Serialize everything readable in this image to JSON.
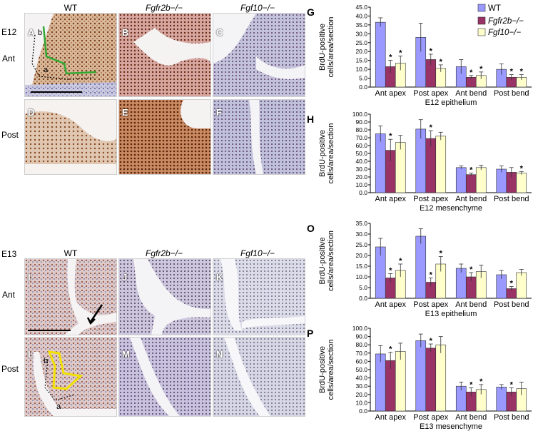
{
  "figure": {
    "top": {
      "stage": "E12",
      "columns": [
        "WT",
        "Fgfr2b−/−",
        "Fgf10−/−"
      ],
      "rows": [
        "Ant",
        "Post"
      ],
      "panel_letters": [
        "A",
        "B",
        "C",
        "D",
        "E",
        "F"
      ],
      "annotations": {
        "a": "a",
        "b": "b"
      }
    },
    "bottom": {
      "stage": "E13",
      "columns": [
        "WT",
        "Fgfr2b−/−",
        "Fgf10−/−"
      ],
      "rows": [
        "Ant",
        "Post"
      ],
      "panel_letters": [
        "I",
        "J",
        "K",
        "L",
        "M",
        "N"
      ],
      "annotations": {
        "a": "a",
        "b": "b"
      }
    },
    "colors": {
      "WT": "#9999ff",
      "Fgfr2b": "#993366",
      "Fgf10": "#ffffcc",
      "epithelium_stain": "#8b4a1f",
      "mesenchyme_stain": "#6a6aa8"
    }
  },
  "legend": [
    "WT",
    "Fgfr2b−/−",
    "Fgf10−/−"
  ],
  "chart_data": [
    {
      "panel": "G",
      "type": "bar",
      "title": "",
      "xlabel": "E12 epithelium",
      "ylabel": "BrdU-positive cells/area/section",
      "ylim": [
        0,
        45
      ],
      "yticks": [
        "0.0",
        "5.0",
        "10.0",
        "15.0",
        "20.0",
        "25.0",
        "30.0",
        "35.0",
        "40.0",
        "45.0"
      ],
      "grid": false,
      "categories": [
        "Ant apex",
        "Post apex",
        "Ant bend",
        "Post bend"
      ],
      "series": [
        {
          "name": "WT",
          "values": [
            36.5,
            28.0,
            11.5,
            10.0
          ],
          "errors": [
            2.5,
            8.0,
            4.0,
            3.0
          ]
        },
        {
          "name": "Fgfr2b−/−",
          "values": [
            11.5,
            15.5,
            5.5,
            5.5
          ],
          "errors": [
            3.5,
            3.0,
            1.0,
            1.5
          ]
        },
        {
          "name": "Fgf10−/−",
          "values": [
            13.5,
            10.5,
            6.5,
            5.5
          ],
          "errors": [
            4.0,
            2.0,
            2.0,
            1.5
          ]
        }
      ],
      "significance": [
        [
          0,
          1
        ],
        [
          0,
          2
        ],
        [
          1,
          1
        ],
        [
          1,
          2
        ],
        [
          2,
          1
        ],
        [
          2,
          2
        ],
        [
          3,
          1
        ],
        [
          3,
          2
        ]
      ]
    },
    {
      "panel": "H",
      "type": "bar",
      "title": "",
      "xlabel": "E12 mesenchyme",
      "ylabel": "BrdU-positive cells/area/section",
      "ylim": [
        0,
        100
      ],
      "yticks": [
        "0.0",
        "10.0",
        "20.0",
        "30.0",
        "40.0",
        "50.0",
        "60.0",
        "70.0",
        "80.0",
        "90.0",
        "100.0"
      ],
      "grid": false,
      "categories": [
        "Ant apex",
        "Post apex",
        "Ant bend",
        "Post bend"
      ],
      "series": [
        {
          "name": "WT",
          "values": [
            75,
            81,
            32,
            30
          ],
          "errors": [
            10,
            12,
            2,
            4
          ]
        },
        {
          "name": "Fgfr2b−/−",
          "values": [
            54,
            69,
            23,
            26
          ],
          "errors": [
            14,
            10,
            2,
            6
          ]
        },
        {
          "name": "Fgf10−/−",
          "values": [
            64,
            72,
            32,
            25
          ],
          "errors": [
            9,
            5,
            3,
            2
          ]
        }
      ],
      "significance": [
        [
          0,
          1
        ],
        [
          1,
          1
        ],
        [
          2,
          1
        ],
        [
          3,
          2
        ]
      ]
    },
    {
      "panel": "O",
      "type": "bar",
      "title": "",
      "xlabel": "E13 epithelium",
      "ylabel": "BrdU-positive cells/area/section",
      "ylim": [
        0,
        35
      ],
      "yticks": [
        "0.0",
        "5.0",
        "10.0",
        "15.0",
        "20.0",
        "25.0",
        "30.0",
        "35.0"
      ],
      "grid": false,
      "categories": [
        "Ant apex",
        "Post apex",
        "Ant bend",
        "Post bend"
      ],
      "series": [
        {
          "name": "WT",
          "values": [
            24.0,
            29.0,
            14.0,
            11.0
          ],
          "errors": [
            4.0,
            3.5,
            2.0,
            2.0
          ]
        },
        {
          "name": "Fgfr2b−/−",
          "values": [
            9.5,
            7.5,
            10.0,
            4.5
          ],
          "errors": [
            2.0,
            2.0,
            2.0,
            1.0
          ]
        },
        {
          "name": "Fgf10−/−",
          "values": [
            13.0,
            16.0,
            12.5,
            12.0
          ],
          "errors": [
            3.0,
            3.5,
            3.0,
            1.5
          ]
        }
      ],
      "significance": [
        [
          0,
          1
        ],
        [
          0,
          2
        ],
        [
          1,
          1
        ],
        [
          1,
          2
        ],
        [
          2,
          1
        ],
        [
          3,
          1
        ]
      ]
    },
    {
      "panel": "P",
      "type": "bar",
      "title": "",
      "xlabel": "E13 mesenchyme",
      "ylabel": "BrdU-positive cells/area/section",
      "ylim": [
        0,
        100
      ],
      "yticks": [
        "0.0",
        "10.0",
        "20.0",
        "30.0",
        "40.0",
        "50.0",
        "60.0",
        "70.0",
        "80.0",
        "90.0",
        "100.0"
      ],
      "grid": false,
      "categories": [
        "Ant apex",
        "Post apex",
        "Ant bend",
        "Post bend"
      ],
      "series": [
        {
          "name": "WT",
          "values": [
            69,
            85,
            30,
            29
          ],
          "errors": [
            10,
            8,
            5,
            3
          ]
        },
        {
          "name": "Fgfr2b−/−",
          "values": [
            61,
            76,
            23,
            23
          ],
          "errors": [
            10,
            5,
            5,
            5
          ]
        },
        {
          "name": "Fgf10−/−",
          "values": [
            72,
            80,
            26,
            27
          ],
          "errors": [
            10,
            10,
            6,
            8
          ]
        }
      ],
      "significance": [
        [
          0,
          1
        ],
        [
          1,
          1
        ],
        [
          2,
          1
        ],
        [
          2,
          2
        ],
        [
          3,
          1
        ]
      ]
    }
  ]
}
